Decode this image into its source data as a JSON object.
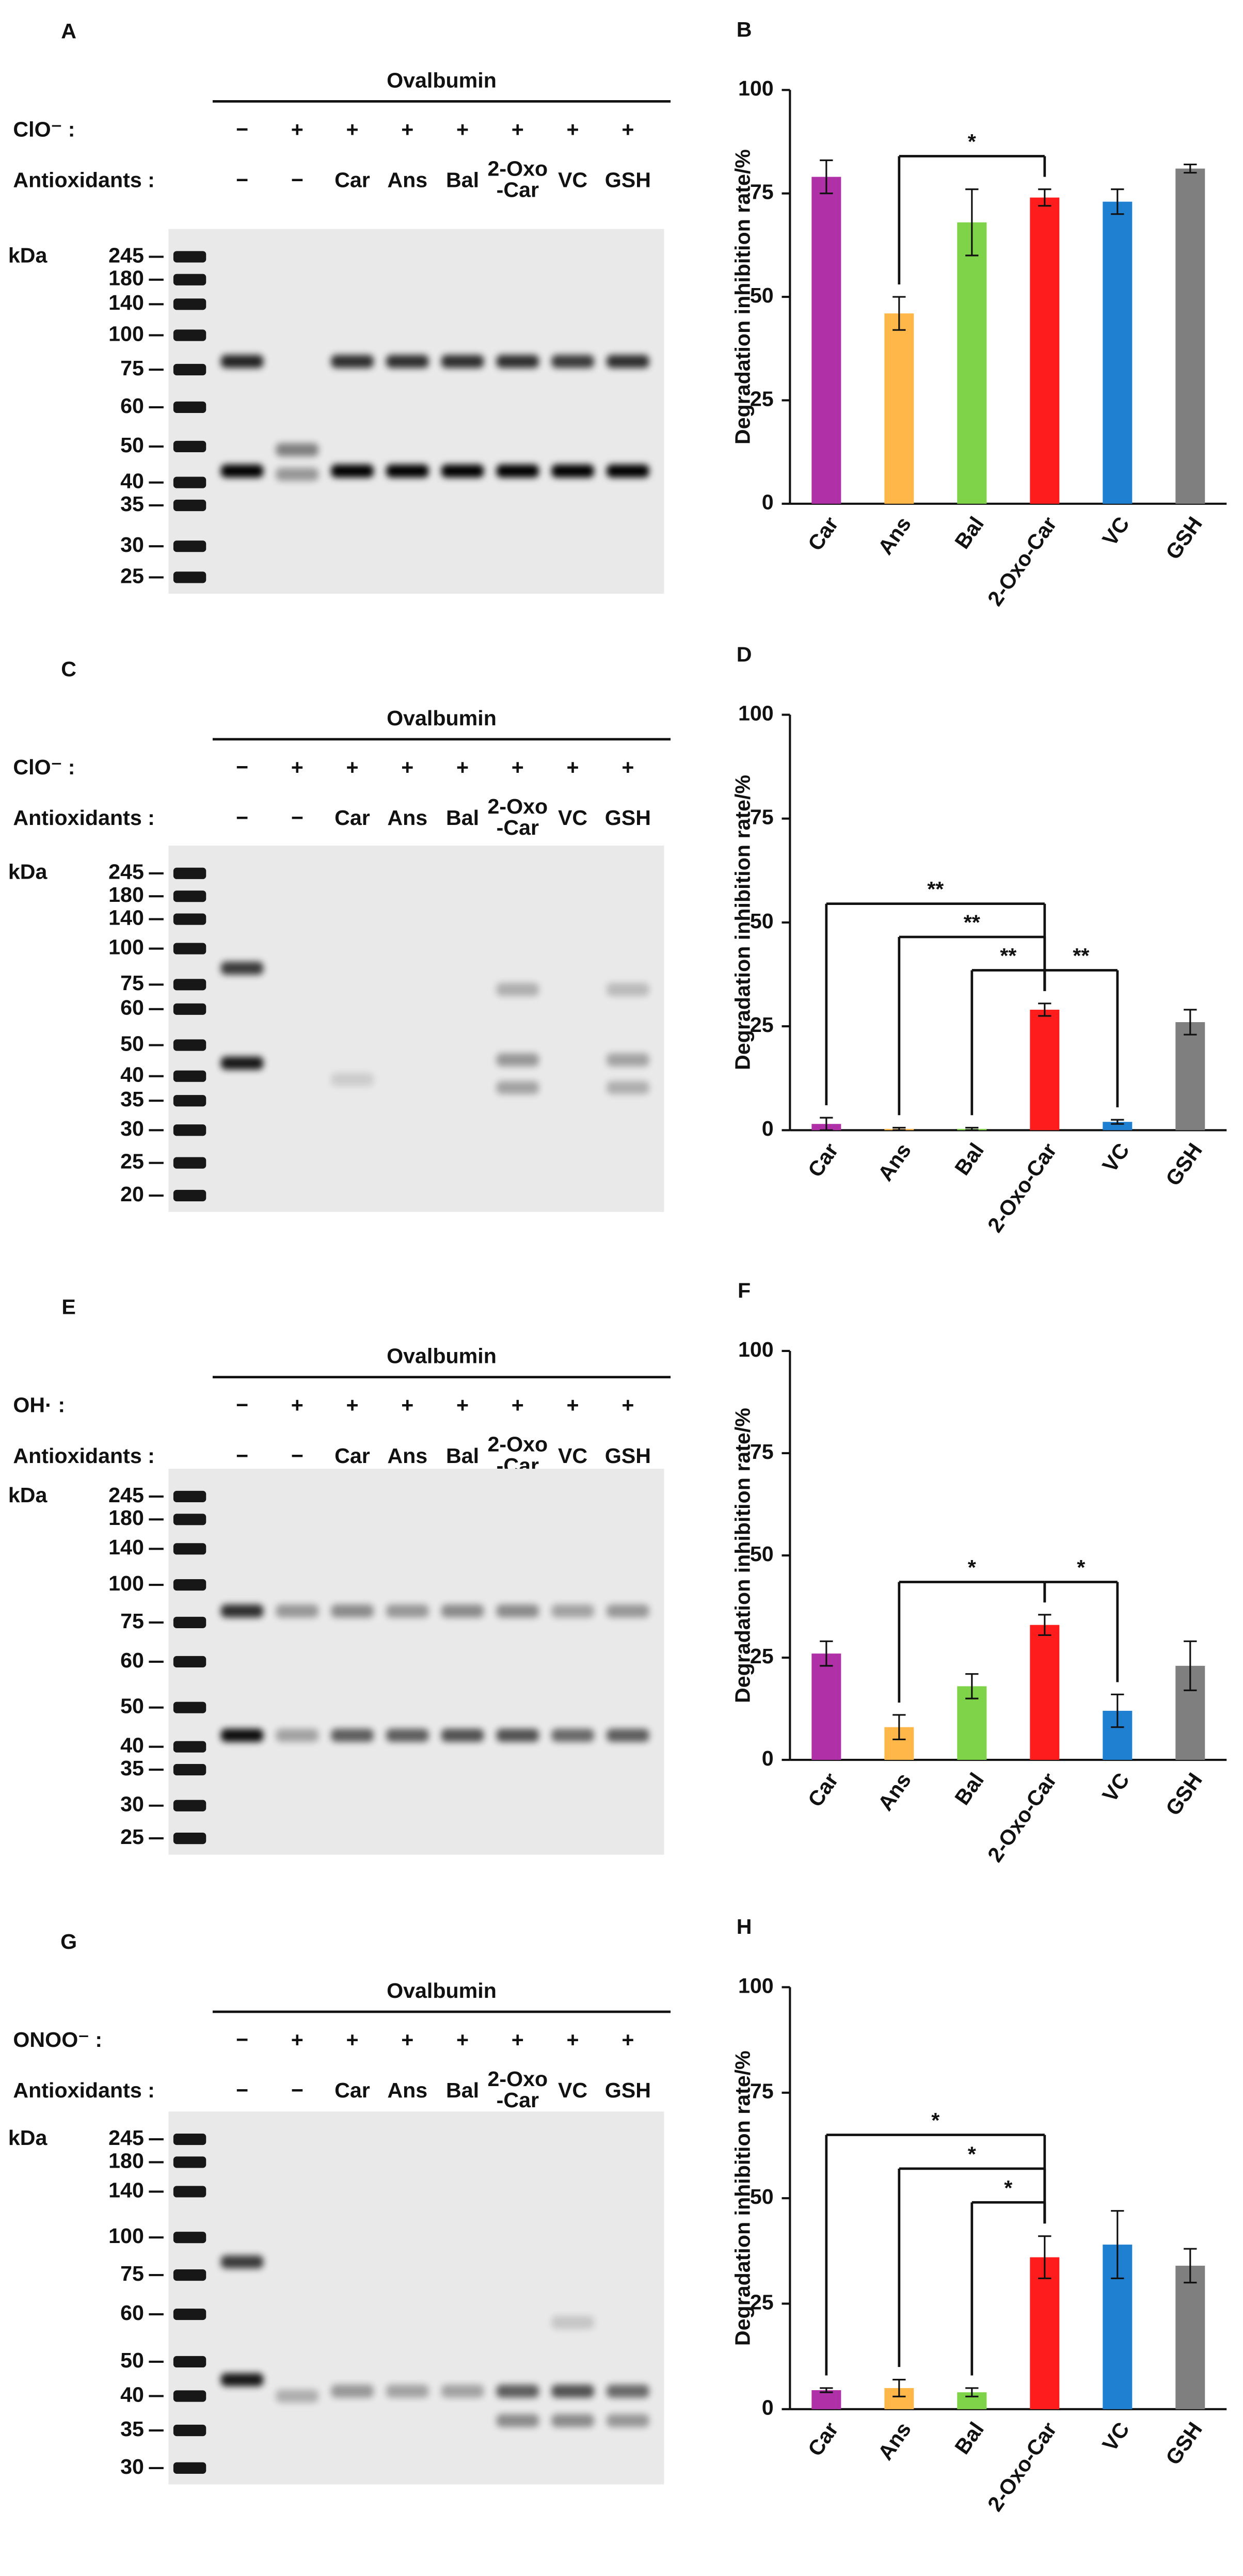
{
  "panels": [
    {
      "letter": "A",
      "title": "Ovalbumin",
      "treatment": "ClO⁻ :",
      "signs": [
        "−",
        "+",
        "+",
        "+",
        "+",
        "+",
        "+",
        "+"
      ],
      "antioxidants_label": "Antioxidants :",
      "antioxidants": [
        "−",
        "−",
        "Car",
        "Ans",
        "Bal",
        [
          "2-Oxo",
          "-Car"
        ],
        "VC",
        "GSH"
      ],
      "unit": "kDa",
      "markers": [
        245,
        180,
        140,
        100,
        75,
        60,
        50,
        40,
        35,
        30,
        25
      ]
    },
    {
      "letter": "C",
      "title": "Ovalbumin",
      "treatment": "ClO⁻ :",
      "signs": [
        "−",
        "+",
        "+",
        "+",
        "+",
        "+",
        "+",
        "+"
      ],
      "antioxidants_label": "Antioxidants :",
      "antioxidants": [
        "−",
        "−",
        "Car",
        "Ans",
        "Bal",
        [
          "2-Oxo",
          "-Car"
        ],
        "VC",
        "GSH"
      ],
      "unit": "kDa",
      "markers": [
        245,
        180,
        140,
        100,
        75,
        60,
        50,
        40,
        35,
        30,
        25,
        20
      ]
    },
    {
      "letter": "E",
      "title": "Ovalbumin",
      "treatment": "OH· :",
      "signs": [
        "−",
        "+",
        "+",
        "+",
        "+",
        "+",
        "+",
        "+"
      ],
      "antioxidants_label": "Antioxidants :",
      "antioxidants": [
        "−",
        "−",
        "Car",
        "Ans",
        "Bal",
        [
          "2-Oxo",
          "-Car"
        ],
        "VC",
        "GSH"
      ],
      "unit": "kDa",
      "markers": [
        245,
        180,
        140,
        100,
        75,
        60,
        50,
        40,
        35,
        30,
        25
      ]
    },
    {
      "letter": "G",
      "title": "Ovalbumin",
      "treatment": "ONOO⁻ :",
      "signs": [
        "−",
        "+",
        "+",
        "+",
        "+",
        "+",
        "+",
        "+"
      ],
      "antioxidants_label": "Antioxidants :",
      "antioxidants": [
        "−",
        "−",
        "Car",
        "Ans",
        "Bal",
        [
          "2-Oxo",
          "-Car"
        ],
        "VC",
        "GSH"
      ],
      "unit": "kDa",
      "markers": [
        245,
        180,
        140,
        100,
        75,
        60,
        50,
        40,
        35,
        30
      ]
    }
  ],
  "chart_data": [
    {
      "type": "bar",
      "letter": "B",
      "ylabel": "Degradation inhibition rate/%",
      "categories": [
        "Car",
        "Ans",
        "Bal",
        "2-Oxo-Car",
        "VC",
        "GSH"
      ],
      "colors": [
        "#b030a8",
        "#ffb74a",
        "#7ed348",
        "#ff1c1c",
        "#1f7fd1",
        "#7f7f7f"
      ],
      "values": [
        79,
        46,
        68,
        74,
        73,
        81
      ],
      "errors": [
        4,
        4,
        8,
        2,
        3,
        1
      ],
      "ylim": [
        0,
        100
      ],
      "yticks": [
        0,
        25,
        50,
        75,
        100
      ],
      "annotations": [
        {
          "label": "*",
          "from": "Ans",
          "to": "2-Oxo-Car"
        }
      ]
    },
    {
      "type": "bar",
      "letter": "D",
      "ylabel": "Degradation inhibition rate/%",
      "categories": [
        "Car",
        "Ans",
        "Bal",
        "2-Oxo-Car",
        "VC",
        "GSH"
      ],
      "colors": [
        "#b030a8",
        "#ffb74a",
        "#7ed348",
        "#ff1c1c",
        "#1f7fd1",
        "#7f7f7f"
      ],
      "values": [
        1.5,
        0.3,
        0.3,
        29,
        2,
        26
      ],
      "errors": [
        1.5,
        0.3,
        0.3,
        1.5,
        0.5,
        3
      ],
      "ylim": [
        0,
        100
      ],
      "yticks": [
        0,
        25,
        50,
        75,
        100
      ],
      "annotations": [
        {
          "label": "**",
          "from": "Car",
          "to": "2-Oxo-Car"
        },
        {
          "label": "**",
          "from": "Ans",
          "to": "2-Oxo-Car"
        },
        {
          "label": "**",
          "from": "Bal",
          "to": "2-Oxo-Car"
        },
        {
          "label": "**",
          "from": "2-Oxo-Car",
          "to": "VC"
        }
      ]
    },
    {
      "type": "bar",
      "letter": "F",
      "ylabel": "Degradation inhibition rate/%",
      "categories": [
        "Car",
        "Ans",
        "Bal",
        "2-Oxo-Car",
        "VC",
        "GSH"
      ],
      "colors": [
        "#b030a8",
        "#ffb74a",
        "#7ed348",
        "#ff1c1c",
        "#1f7fd1",
        "#7f7f7f"
      ],
      "values": [
        26,
        8,
        18,
        33,
        12,
        23
      ],
      "errors": [
        3,
        3,
        3,
        2.5,
        4,
        6
      ],
      "ylim": [
        0,
        100
      ],
      "yticks": [
        0,
        25,
        50,
        75,
        100
      ],
      "annotations": [
        {
          "label": "*",
          "from": "Ans",
          "to": "2-Oxo-Car"
        },
        {
          "label": "*",
          "from": "2-Oxo-Car",
          "to": "VC"
        }
      ]
    },
    {
      "type": "bar",
      "letter": "H",
      "ylabel": "Degradation inhibition rate/%",
      "categories": [
        "Car",
        "Ans",
        "Bal",
        "2-Oxo-Car",
        "VC",
        "GSH"
      ],
      "colors": [
        "#b030a8",
        "#ffb74a",
        "#7ed348",
        "#ff1c1c",
        "#1f7fd1",
        "#7f7f7f"
      ],
      "values": [
        4.5,
        5,
        4,
        36,
        39,
        34
      ],
      "errors": [
        0.5,
        2,
        1,
        5,
        8,
        4
      ],
      "ylim": [
        0,
        100
      ],
      "yticks": [
        0,
        25,
        50,
        75,
        100
      ],
      "annotations": [
        {
          "label": "*",
          "from": "Car",
          "to": "2-Oxo-Car"
        },
        {
          "label": "*",
          "from": "Ans",
          "to": "2-Oxo-Car"
        },
        {
          "label": "*",
          "from": "Bal",
          "to": "2-Oxo-Car"
        }
      ]
    }
  ]
}
